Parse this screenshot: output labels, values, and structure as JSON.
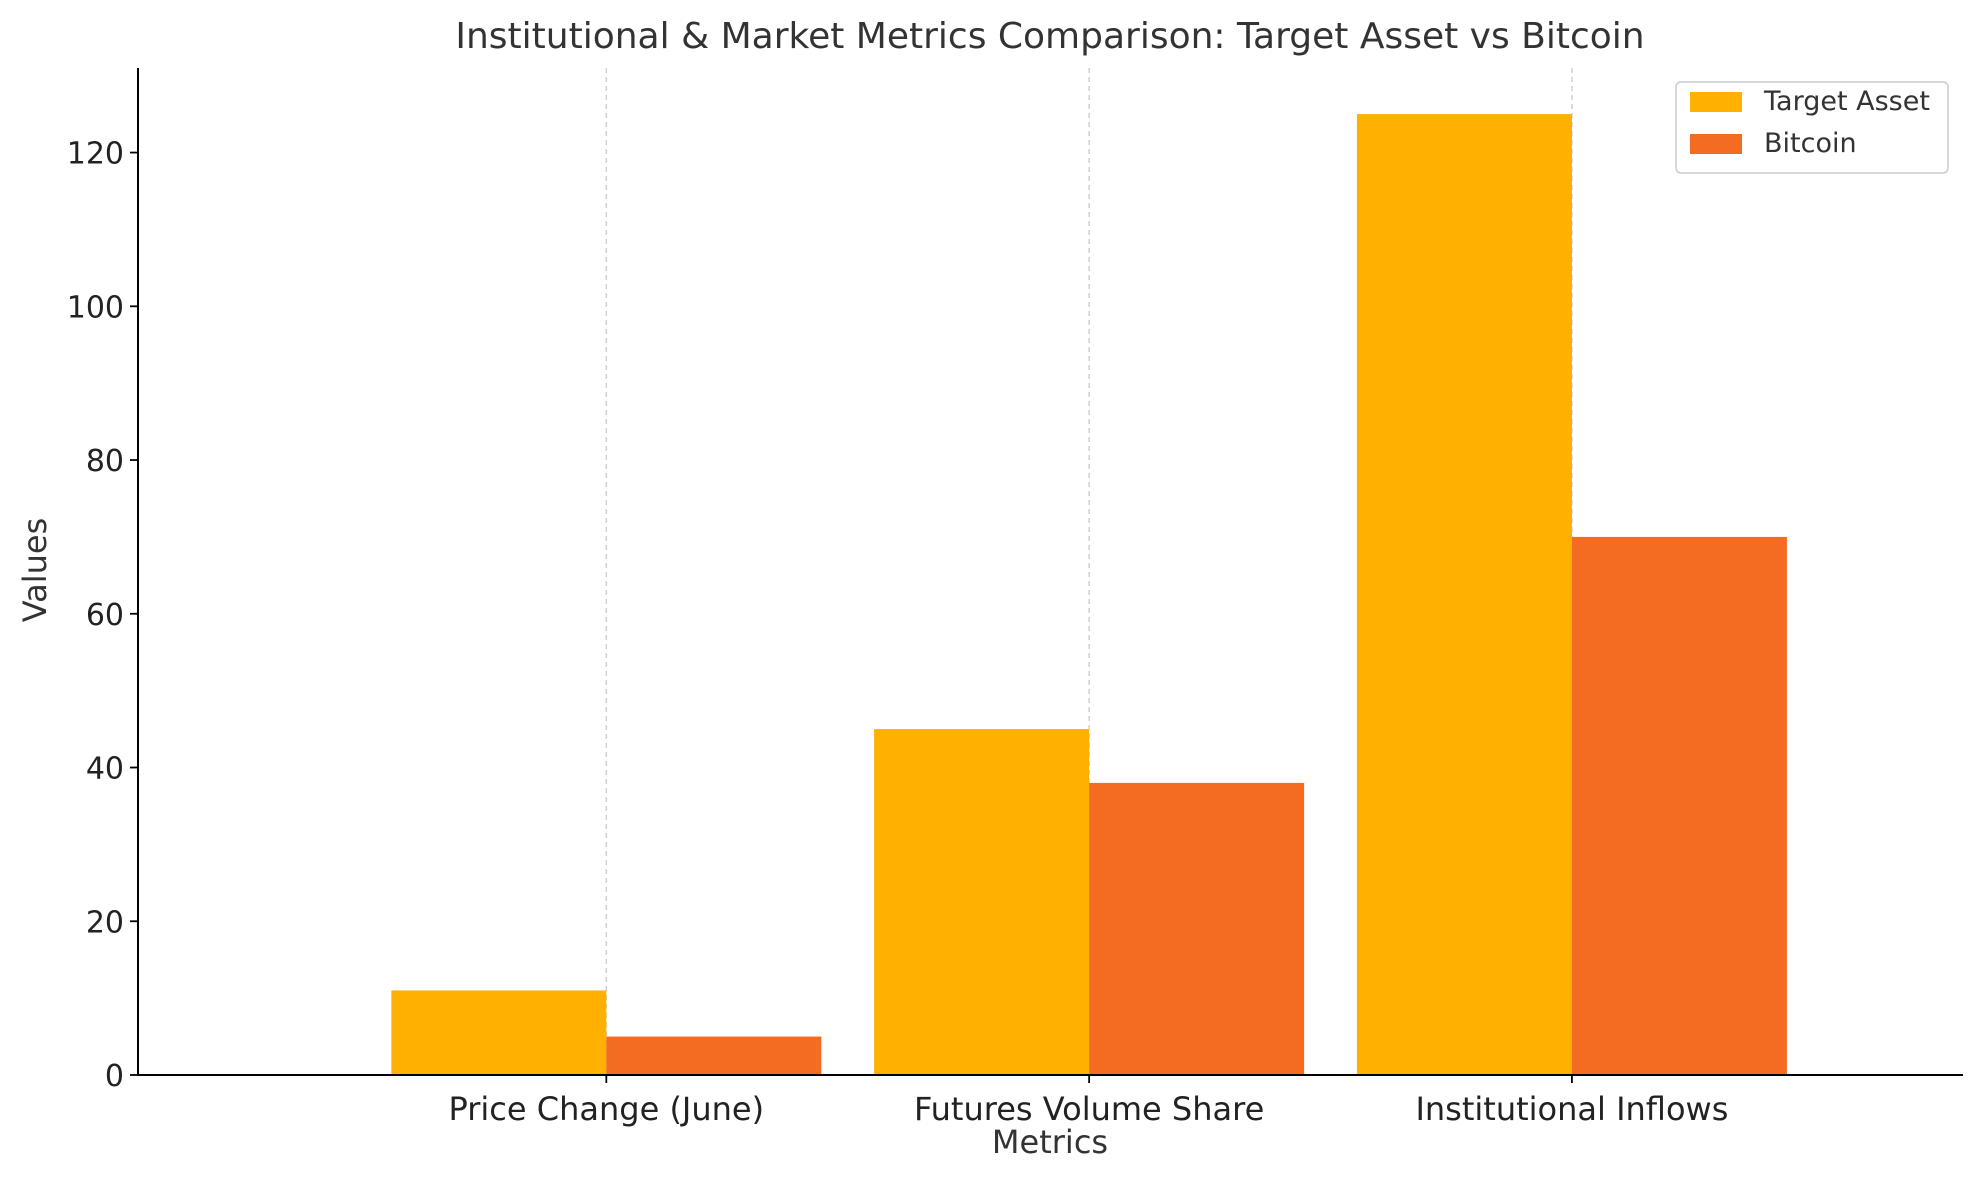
{
  "chart_data": {
    "type": "bar",
    "title": "Institutional & Market Metrics Comparison: Target Asset vs Bitcoin",
    "xlabel": "Metrics",
    "ylabel": "Values",
    "categories": [
      "Price Change (June)",
      "Futures Volume Share",
      "Institutional Inflows"
    ],
    "series": [
      {
        "name": "Target Asset",
        "values": [
          11,
          45,
          125
        ],
        "color": "#FFB000"
      },
      {
        "name": "Bitcoin",
        "values": [
          5,
          38,
          70
        ],
        "color": "#F46B22"
      }
    ],
    "ylim": [
      0,
      131
    ],
    "yticks": [
      0,
      20,
      40,
      60,
      80,
      100,
      120
    ],
    "grid": "vertical-dashed",
    "legend_position": "top-right"
  }
}
